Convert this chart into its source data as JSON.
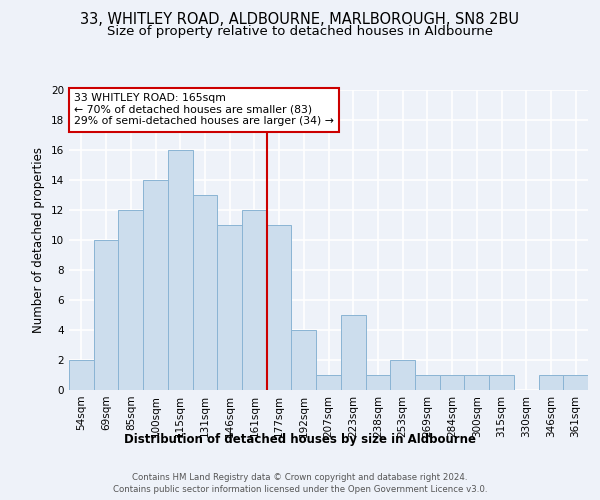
{
  "title": "33, WHITLEY ROAD, ALDBOURNE, MARLBOROUGH, SN8 2BU",
  "subtitle": "Size of property relative to detached houses in Aldbourne",
  "xlabel": "Distribution of detached houses by size in Aldbourne",
  "ylabel": "Number of detached properties",
  "footer_line1": "Contains HM Land Registry data © Crown copyright and database right 2024.",
  "footer_line2": "Contains public sector information licensed under the Open Government Licence v3.0.",
  "bar_labels": [
    "54sqm",
    "69sqm",
    "85sqm",
    "100sqm",
    "115sqm",
    "131sqm",
    "146sqm",
    "161sqm",
    "177sqm",
    "192sqm",
    "207sqm",
    "223sqm",
    "238sqm",
    "253sqm",
    "269sqm",
    "284sqm",
    "300sqm",
    "315sqm",
    "330sqm",
    "346sqm",
    "361sqm"
  ],
  "bar_values": [
    2,
    10,
    12,
    14,
    16,
    13,
    11,
    12,
    11,
    4,
    1,
    5,
    1,
    2,
    1,
    1,
    1,
    1,
    0,
    1,
    1
  ],
  "bar_color": "#ccdded",
  "bar_edge_color": "#8ab4d4",
  "annotation_line1": "33 WHITLEY ROAD: 165sqm",
  "annotation_line2": "← 70% of detached houses are smaller (83)",
  "annotation_line3": "29% of semi-detached houses are larger (34) →",
  "vline_color": "#cc0000",
  "annotation_box_color": "#cc0000",
  "ylim": [
    0,
    20
  ],
  "yticks": [
    0,
    2,
    4,
    6,
    8,
    10,
    12,
    14,
    16,
    18,
    20
  ],
  "background_color": "#eef2f9",
  "grid_color": "#ffffff",
  "title_fontsize": 10.5,
  "subtitle_fontsize": 9.5,
  "ylabel_fontsize": 8.5,
  "xlabel_fontsize": 8.5,
  "tick_fontsize": 7.5,
  "annotation_fontsize": 7.8,
  "footer_fontsize": 6.2
}
